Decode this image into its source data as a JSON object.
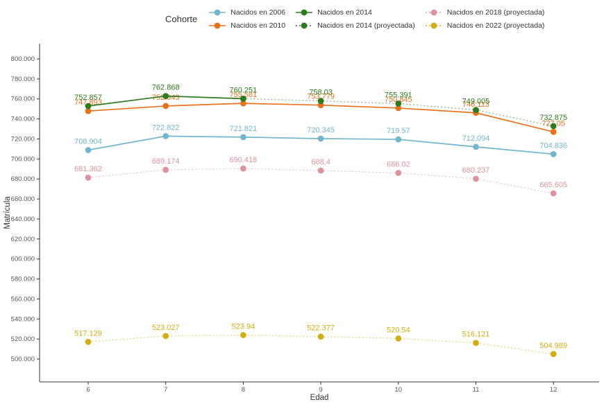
{
  "chart_data": {
    "type": "line",
    "title": "",
    "xlabel": "Edad",
    "ylabel": "Matrícula",
    "legend_title": "Cohorte",
    "legend_position": "top",
    "grid": false,
    "background": "#ffffff",
    "x_ticks": [
      6,
      7,
      8,
      9,
      10,
      11,
      12
    ],
    "x_tick_labels": [
      "6",
      "7",
      "8",
      "9",
      "10",
      "11",
      "12"
    ],
    "xlim": [
      5.4,
      12.6
    ],
    "ylim": [
      490,
      810
    ],
    "y_ticks": [
      {
        "value": 800,
        "label": "800.000"
      },
      {
        "value": 780,
        "label": "780.000"
      },
      {
        "value": 760,
        "label": "760.000"
      },
      {
        "value": 740,
        "label": "740.000"
      },
      {
        "value": 720,
        "label": "720.000"
      },
      {
        "value": 700,
        "label": "700.000"
      },
      {
        "value": 680,
        "label": "680.000"
      },
      {
        "value": 660,
        "label": "660.000"
      },
      {
        "value": 640,
        "label": "640.000"
      },
      {
        "value": 620,
        "label": "620.000"
      },
      {
        "value": 600,
        "label": "600.000"
      },
      {
        "value": 580,
        "label": "580.000"
      },
      {
        "value": 560,
        "label": "560.000"
      },
      {
        "value": 540,
        "label": "540.000"
      },
      {
        "value": 520,
        "label": "520.000"
      },
      {
        "value": 500,
        "label": "500.000"
      }
    ],
    "y_unit_note": "values in thousands of matricula, shown with Spanish thousand-dot labels",
    "series": [
      {
        "name": "Nacidos en 2006",
        "color": "#72b5cc",
        "style": "solid",
        "x": [
          6,
          7,
          8,
          9,
          10,
          11,
          12
        ],
        "values": [
          708.904,
          722.822,
          721.821,
          720.345,
          719.57,
          712.094,
          704.836
        ],
        "labels": [
          "708.904",
          "722.822",
          "721.821",
          "720.345",
          "719.57",
          "712.094",
          "704.836"
        ]
      },
      {
        "name": "Nacidos en 2010",
        "color": "#e8721c",
        "style": "solid",
        "x": [
          6,
          7,
          8,
          9,
          10,
          11,
          12
        ],
        "values": [
          747.893,
          752.943,
          755.581,
          753.779,
          750.845,
          746.113,
          727.05
        ],
        "labels": [
          "747.893",
          "752.943",
          "755.581",
          "753.779",
          "750.845",
          "746.113",
          "727.05"
        ]
      },
      {
        "name": "Nacidos en 2014",
        "color": "#2d7a1f",
        "style": "solid",
        "x": [
          6,
          7,
          8
        ],
        "values": [
          752.857,
          762.868,
          760.251
        ],
        "labels": [
          "752.857",
          "762.868",
          "760.251"
        ]
      },
      {
        "name": "Nacidos en 2014 (proyectada)",
        "color": "#2d7a1f",
        "style": "dotted",
        "x": [
          8,
          9,
          10,
          11,
          12
        ],
        "values": [
          760.251,
          758.03,
          755.391,
          749.005,
          732.875
        ],
        "labels": [
          "",
          "758.03",
          "755.391",
          "749.005",
          "732.875"
        ]
      },
      {
        "name": "Nacidos en 2018 (proyectada)",
        "color": "#dc939c",
        "style": "dotted",
        "x": [
          6,
          7,
          8,
          9,
          10,
          11,
          12
        ],
        "values": [
          681.362,
          689.174,
          690.418,
          688.4,
          686.02,
          680.237,
          665.605
        ],
        "labels": [
          "681.362",
          "689.174",
          "690.418",
          "688.4",
          "686.02",
          "680.237",
          "665.605"
        ]
      },
      {
        "name": "Nacidos en 2022 (proyectada)",
        "color": "#d2ae14",
        "style": "dotted",
        "x": [
          6,
          7,
          8,
          9,
          10,
          11,
          12
        ],
        "values": [
          517.129,
          523.027,
          523.94,
          522.377,
          520.54,
          516.121,
          504.989
        ],
        "labels": [
          "517.129",
          "523.027",
          "523.94",
          "522.377",
          "520.54",
          "516.121",
          "504.989"
        ]
      }
    ]
  }
}
